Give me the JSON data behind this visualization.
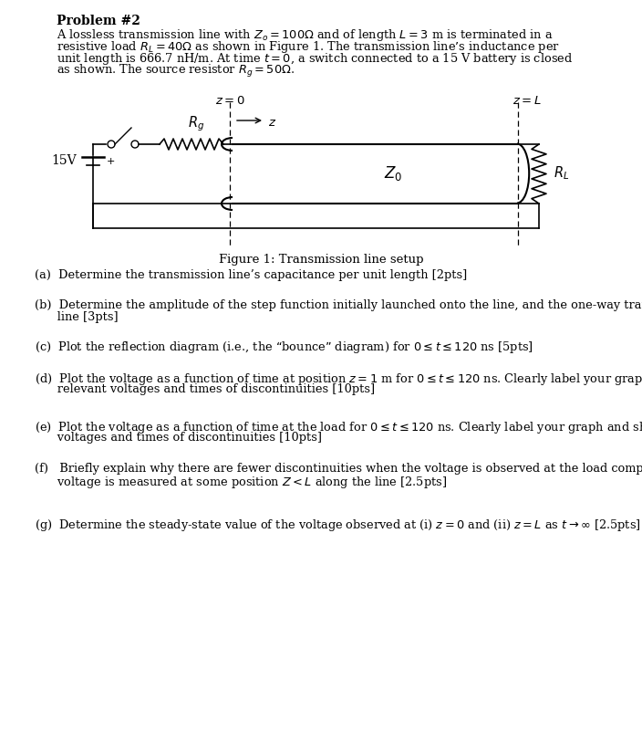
{
  "bg_color": "#ffffff",
  "title": "Problem #2",
  "prob_line1": "A lossless transmission line with $Z_o = 100\\Omega$ and of length $L = 3$ m is terminated in a",
  "prob_line2": "resistive load $R_L = 40\\Omega$ as shown in Figure 1. The transmission line’s inductance per",
  "prob_line3": "unit length is 666.7 nH/m. At time $t = 0$, a switch connected to a 15 V battery is closed",
  "prob_line4": "as shown. The source resistor $R_g = 50\\Omega$.",
  "fig_caption": "Figure 1: Transmission line setup",
  "q_a": "(a)  Determine the transmission line’s capacitance per unit length [2pts]",
  "q_b1": "(b)  Determine the amplitude of the step function initially launched onto the line, and the one-way transit time of the",
  "q_b2": "      line [3pts]",
  "q_c": "(c)  Plot the reflection diagram (i.e., the “bounce” diagram) for $0 \\leq t \\leq 120$ ns [5pts]",
  "q_d1": "(d)  Plot the voltage as a function of time at position $z = 1$ m for $0 \\leq t \\leq 120$ ns. Clearly label your graph and show all",
  "q_d2": "      relevant voltages and times of discontinuities [10pts]",
  "q_e1": "(e)  Plot the voltage as a function of time at the load for $0 \\leq t \\leq 120$ ns. Clearly label your graph and show all relevant",
  "q_e2": "      voltages and times of discontinuities [10pts]",
  "q_f1": "(f)   Briefly explain why there are fewer discontinuities when the voltage is observed at the load compared to when the",
  "q_f2": "      voltage is measured at some position $Z < L$ along the line [2.5pts]",
  "q_g": "(g)  Determine the steady-state value of the voltage observed at (i) $z = 0$ and (ii) $z = L$ as $t \\rightarrow \\infty$ [2.5pts]"
}
